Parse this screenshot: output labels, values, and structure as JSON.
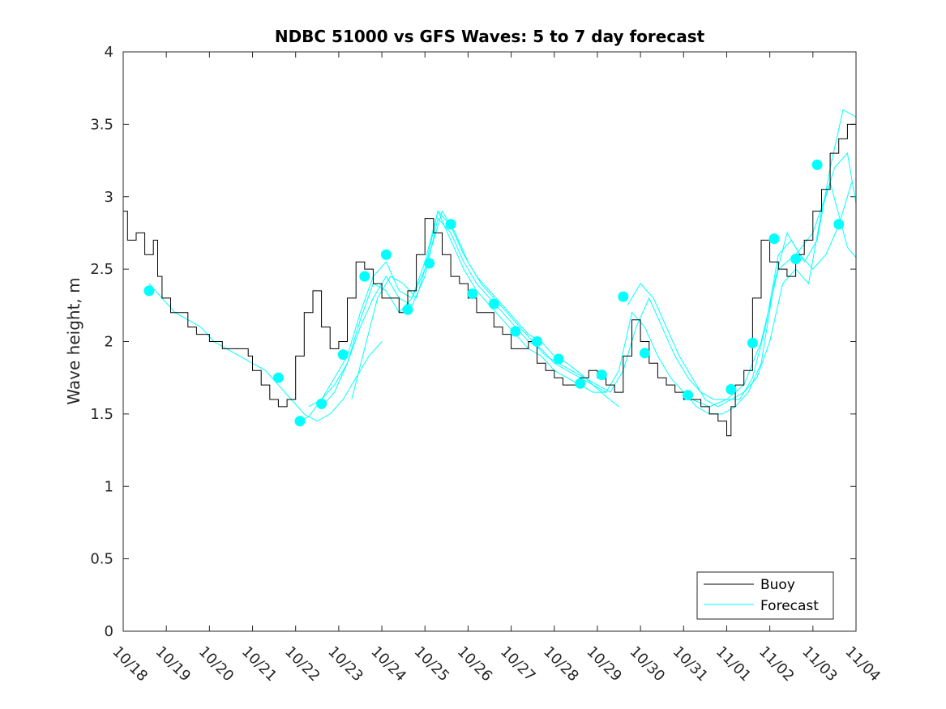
{
  "chart_data": {
    "type": "line",
    "title": "NDBC 51000 vs GFS Waves: 5 to 7 day forecast",
    "xlabel": "",
    "ylabel": "Wave height, m",
    "xlim": [
      0,
      17
    ],
    "ylim": [
      0,
      4
    ],
    "y_ticks": [
      0,
      0.5,
      1,
      1.5,
      2,
      2.5,
      3,
      3.5,
      4
    ],
    "y_tick_labels": [
      "0",
      "0.5",
      "1",
      "1.5",
      "2",
      "2.5",
      "3",
      "3.5",
      "4"
    ],
    "x_ticks": [
      0,
      1,
      2,
      3,
      4,
      5,
      6,
      7,
      8,
      9,
      10,
      11,
      12,
      13,
      14,
      15,
      16,
      17
    ],
    "x_tick_labels": [
      "10/18",
      "10/19",
      "10/20",
      "10/21",
      "10/22",
      "10/23",
      "10/24",
      "10/25",
      "10/26",
      "10/27",
      "10/28",
      "10/29",
      "10/30",
      "10/31",
      "11/01",
      "11/02",
      "11/03",
      "11/04"
    ],
    "x_unit": "days since 10/18 00:00",
    "legend": {
      "position": "bottom-right",
      "entries": [
        "Buoy",
        "Forecast"
      ]
    },
    "colors": {
      "buoy": "#000000",
      "forecast": "#00ffff",
      "axes": "#262626"
    },
    "series": [
      {
        "name": "Buoy",
        "x": [
          0,
          0.1,
          0.3,
          0.5,
          0.7,
          0.8,
          0.9,
          1.1,
          1.3,
          1.5,
          1.7,
          2.0,
          2.3,
          2.6,
          2.9,
          3.0,
          3.2,
          3.4,
          3.6,
          3.8,
          4.0,
          4.2,
          4.4,
          4.6,
          4.8,
          5.0,
          5.2,
          5.4,
          5.6,
          5.8,
          6.0,
          6.2,
          6.4,
          6.6,
          6.8,
          7.0,
          7.2,
          7.4,
          7.6,
          7.8,
          8.0,
          8.2,
          8.4,
          8.6,
          8.8,
          9.0,
          9.2,
          9.4,
          9.6,
          9.8,
          10.0,
          10.2,
          10.4,
          10.6,
          10.8,
          11.0,
          11.2,
          11.4,
          11.6,
          11.8,
          12.0,
          12.2,
          12.4,
          12.6,
          12.8,
          13.0,
          13.2,
          13.4,
          13.6,
          13.8,
          14.0,
          14.1,
          14.2,
          14.4,
          14.6,
          14.8,
          15.0,
          15.2,
          15.4,
          15.6,
          15.8,
          16.0,
          16.2,
          16.4,
          16.6,
          16.8,
          17.0
        ],
        "values": [
          2.6,
          2.9,
          2.7,
          2.75,
          2.6,
          2.7,
          2.45,
          2.3,
          2.2,
          2.2,
          2.1,
          2.05,
          2.0,
          1.95,
          1.95,
          1.9,
          1.8,
          1.7,
          1.6,
          1.55,
          1.6,
          1.9,
          2.2,
          2.35,
          2.1,
          1.95,
          2.0,
          2.3,
          2.55,
          2.5,
          2.4,
          2.3,
          2.3,
          2.2,
          2.35,
          2.6,
          2.85,
          2.75,
          2.6,
          2.45,
          2.4,
          2.3,
          2.2,
          2.2,
          2.1,
          2.05,
          1.95,
          1.95,
          2.0,
          1.85,
          1.8,
          1.75,
          1.7,
          1.7,
          1.75,
          1.8,
          1.75,
          1.7,
          1.65,
          1.9,
          2.15,
          2.0,
          1.85,
          1.75,
          1.7,
          1.65,
          1.6,
          1.6,
          1.55,
          1.5,
          1.45,
          1.35,
          1.55,
          1.7,
          1.8,
          2.3,
          2.7,
          2.55,
          2.5,
          2.45,
          2.6,
          2.7,
          2.9,
          3.05,
          3.3,
          3.4,
          3.5
        ]
      },
      {
        "name": "Forecast",
        "lines": [
          {
            "x": [
              0.6,
              0.9,
              1.2,
              1.5,
              1.8,
              2.1,
              2.4,
              2.7,
              3.0,
              3.3,
              3.6,
              3.9,
              4.2,
              4.5,
              4.8,
              5.1,
              5.4,
              5.7,
              6.0
            ],
            "values": [
              2.4,
              2.3,
              2.2,
              2.15,
              2.1,
              2.0,
              1.95,
              1.9,
              1.85,
              1.8,
              1.7,
              1.6,
              1.5,
              1.45,
              1.5,
              1.6,
              1.75,
              1.9,
              2.0
            ]
          },
          {
            "x": [
              4.0,
              4.3,
              4.6,
              4.9,
              5.2,
              5.5,
              5.8,
              6.1,
              6.4,
              6.7,
              7.0,
              7.3,
              7.6,
              7.9,
              8.2,
              8.5,
              8.8,
              9.1,
              9.4,
              9.7,
              10.0,
              10.3,
              10.6,
              10.9,
              11.2,
              11.5
            ],
            "values": [
              1.45,
              1.48,
              1.6,
              1.75,
              1.9,
              2.2,
              2.45,
              2.55,
              2.35,
              2.3,
              2.5,
              2.9,
              2.8,
              2.6,
              2.45,
              2.35,
              2.25,
              2.15,
              2.05,
              2.0,
              1.9,
              1.85,
              1.78,
              1.7,
              1.62,
              1.55
            ]
          },
          {
            "x": [
              4.3,
              4.6,
              4.9,
              5.2,
              5.5,
              5.8,
              6.1,
              6.4,
              6.7,
              7.0,
              7.3,
              7.6,
              7.9,
              8.2,
              8.5,
              8.8,
              9.1,
              9.4,
              9.7,
              10.0,
              10.3,
              10.6,
              10.9,
              11.2
            ],
            "values": [
              1.55,
              1.6,
              1.7,
              1.85,
              2.1,
              2.3,
              2.45,
              2.3,
              2.25,
              2.45,
              2.85,
              2.75,
              2.55,
              2.4,
              2.3,
              2.2,
              2.1,
              2.0,
              1.95,
              1.85,
              1.8,
              1.75,
              1.7,
              1.65
            ]
          },
          {
            "x": [
              4.6,
              4.9,
              5.2,
              5.5,
              5.8,
              6.1,
              6.4,
              6.7,
              7.0,
              7.3,
              7.6,
              7.9,
              8.2,
              8.5,
              8.8,
              9.1,
              9.4,
              9.7,
              10.0,
              10.3,
              10.6,
              10.9,
              11.2,
              11.5,
              11.8,
              12.1,
              12.4,
              12.7,
              13.0,
              13.3,
              13.6,
              13.9,
              14.2,
              14.5,
              14.8,
              15.1,
              15.4,
              15.7,
              16.0,
              16.3,
              16.6,
              16.9
            ],
            "values": [
              1.55,
              1.65,
              1.85,
              2.15,
              2.4,
              2.35,
              2.2,
              2.3,
              2.55,
              2.9,
              2.7,
              2.5,
              2.35,
              2.25,
              2.15,
              2.05,
              1.95,
              1.9,
              1.8,
              1.75,
              1.7,
              1.65,
              1.65,
              1.8,
              2.2,
              2.1,
              1.9,
              1.75,
              1.65,
              1.55,
              1.5,
              1.5,
              1.55,
              1.65,
              1.85,
              2.4,
              2.75,
              2.6,
              2.5,
              2.6,
              2.8,
              3.1
            ]
          },
          {
            "x": [
              5.3,
              5.6,
              5.9,
              6.2,
              6.5,
              6.8,
              7.1,
              7.4,
              7.7,
              8.0,
              8.3,
              8.6,
              8.9,
              9.2,
              9.5,
              9.8,
              10.1,
              10.4,
              10.7,
              11.0,
              11.3,
              11.6,
              11.9,
              12.2,
              12.5,
              12.8,
              13.1,
              13.4,
              13.7,
              14.0,
              14.3,
              14.6,
              14.9,
              15.2,
              15.5,
              15.8,
              16.1,
              16.4,
              16.7,
              17.0
            ],
            "values": [
              1.6,
              1.95,
              2.3,
              2.45,
              2.4,
              2.3,
              2.6,
              2.9,
              2.75,
              2.55,
              2.4,
              2.3,
              2.2,
              2.1,
              2.0,
              1.9,
              1.85,
              1.8,
              1.75,
              1.7,
              1.65,
              1.8,
              2.1,
              2.3,
              2.1,
              1.9,
              1.75,
              1.65,
              1.6,
              1.6,
              1.6,
              1.75,
              2.1,
              2.6,
              2.7,
              2.55,
              2.7,
              3.2,
              3.6,
              3.55
            ]
          },
          {
            "x": [
              11.7,
              12.0,
              12.3,
              12.6,
              12.9,
              13.2,
              13.5,
              13.8,
              14.1,
              14.4,
              14.7,
              15.0,
              15.3,
              15.6,
              15.9,
              16.2,
              16.5,
              16.8,
              17.0
            ],
            "values": [
              2.25,
              2.4,
              2.3,
              2.1,
              1.9,
              1.75,
              1.6,
              1.55,
              1.6,
              1.65,
              1.75,
              2.0,
              2.4,
              2.5,
              2.4,
              2.9,
              3.2,
              3.3,
              2.95
            ]
          },
          {
            "x": [
              13.2,
              13.6,
              14.0,
              14.4,
              14.8,
              15.2,
              15.6,
              16.0,
              16.4,
              16.8,
              17.0
            ],
            "values": [
              1.6,
              1.55,
              1.6,
              1.7,
              2.0,
              2.5,
              2.6,
              2.75,
              3.1,
              2.65,
              2.58
            ]
          }
        ],
        "markers": {
          "x": [
            0.6,
            3.6,
            4.1,
            4.6,
            5.1,
            5.6,
            6.1,
            6.6,
            7.1,
            7.6,
            8.1,
            8.6,
            9.1,
            9.6,
            10.1,
            10.6,
            11.1,
            11.6,
            12.1,
            13.1,
            14.1,
            14.6,
            15.1,
            15.6,
            16.1,
            16.6
          ],
          "values": [
            2.35,
            1.75,
            1.45,
            1.57,
            1.91,
            2.45,
            2.6,
            2.22,
            2.54,
            2.81,
            2.33,
            2.26,
            2.07,
            2.0,
            1.88,
            1.71,
            1.77,
            2.31,
            1.92,
            1.63,
            1.67,
            1.99,
            2.71,
            2.57,
            3.22,
            2.81
          ]
        }
      }
    ]
  }
}
